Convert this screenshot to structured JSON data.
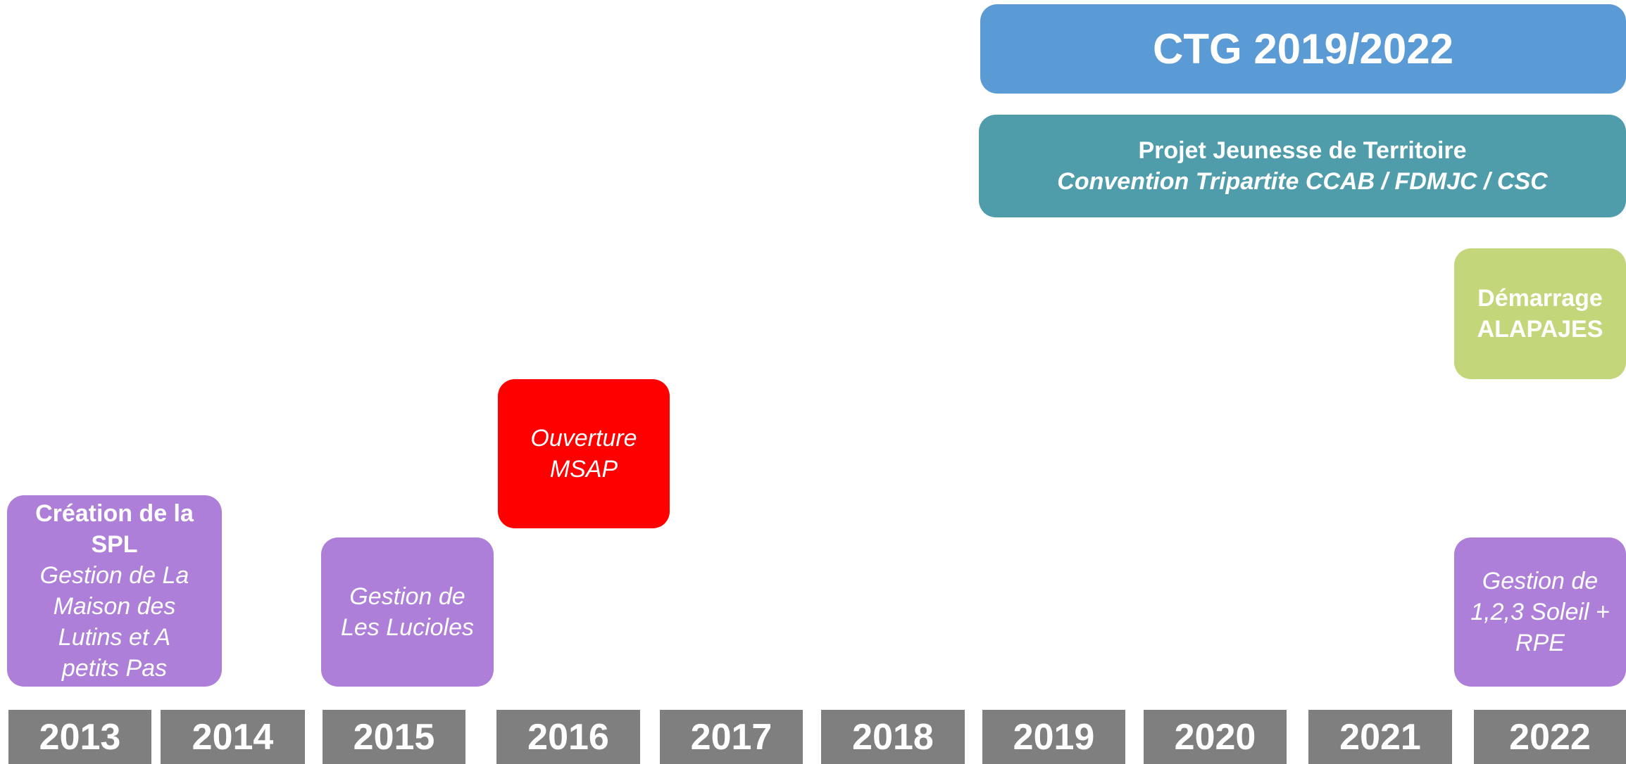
{
  "years": [
    "2013",
    "2014",
    "2015",
    "2016",
    "2017",
    "2018",
    "2019",
    "2020",
    "2021",
    "2022"
  ],
  "events": [
    {
      "color": "#5b9bd5",
      "title": [
        "CTG 2019/2022"
      ],
      "subtitle": []
    },
    {
      "color": "#4f9dab",
      "title": [
        "Projet Jeunesse de Territoire"
      ],
      "subtitle": [
        "Convention Tripartite CCAB / FDMJC / CSC"
      ]
    },
    {
      "color": "#c4d67a",
      "title": [
        "Démarrage",
        "ALAPAJES"
      ],
      "subtitle": []
    },
    {
      "color": "#ff0000",
      "title": [],
      "subtitle": [
        "Ouverture",
        "MSAP"
      ]
    },
    {
      "color": "#ad7fd8",
      "title": [
        "Création de la",
        "SPL"
      ],
      "subtitle": [
        "Gestion de La",
        "Maison des",
        "Lutins et A",
        "petits Pas"
      ]
    },
    {
      "color": "#ad7fd8",
      "title": [],
      "subtitle": [
        "Gestion de",
        "Les Lucioles"
      ]
    },
    {
      "color": "#ad7fd8",
      "title": [],
      "subtitle": [
        "Gestion de",
        "1,2,3 Soleil +",
        "RPE"
      ]
    }
  ]
}
